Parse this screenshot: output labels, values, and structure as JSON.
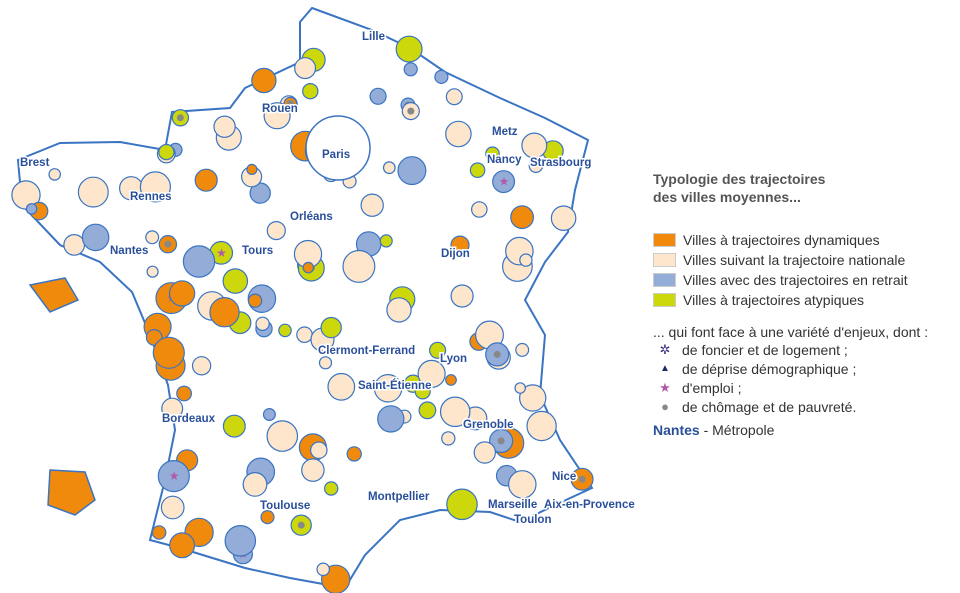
{
  "colors": {
    "dynamic": "#f08a0c",
    "national": "#fde6cc",
    "retreat": "#93acd8",
    "atypical": "#cdd80c",
    "border": "#3a74c2",
    "label": "#2a4f9a",
    "housing": "#3b2c7a",
    "demography": "#1c2a6c",
    "employment": "#b05ba8",
    "poverty": "#888888"
  },
  "cities": [
    "Lille",
    "Rouen",
    "Paris",
    "Brest",
    "Rennes",
    "Orléans",
    "Metz",
    "Nancy",
    "Strasbourg",
    "Nantes",
    "Tours",
    "Dijon",
    "Clermont-Ferrand",
    "Lyon",
    "Saint-Étienne",
    "Grenoble",
    "Bordeaux",
    "Toulouse",
    "Montpellier",
    "Marseille",
    "Aix-en-Provence",
    "Nice",
    "Toulon"
  ],
  "legend": {
    "title_line1": "Typologie des trajectoires",
    "title_line2": "des villes moyennes...",
    "categories": [
      {
        "label": "Villes à trajectoires dynamiques",
        "color": "#f08a0c"
      },
      {
        "label": "Villes suivant la trajectoire nationale",
        "color": "#fde6cc"
      },
      {
        "label": "Villes avec des trajectoires en retrait",
        "color": "#93acd8"
      },
      {
        "label": "Villes à trajectoires atypiques",
        "color": "#cdd80c"
      }
    ],
    "issues_title": "... qui font face à une variété d'enjeux, dont :",
    "issues": [
      {
        "label": "de foncier et de logement ;",
        "icon": "asterisk-icon",
        "glyph": "✲"
      },
      {
        "label": "de déprise démographique ;",
        "icon": "triangle-icon",
        "glyph": "▲"
      },
      {
        "label": "d'emploi ;",
        "icon": "star-icon",
        "glyph": "★"
      },
      {
        "label": "de chômage et de pauvreté.",
        "icon": "dot-icon",
        "glyph": "●"
      }
    ],
    "metro_city": "Nantes",
    "metro_label": " - Métropole"
  }
}
